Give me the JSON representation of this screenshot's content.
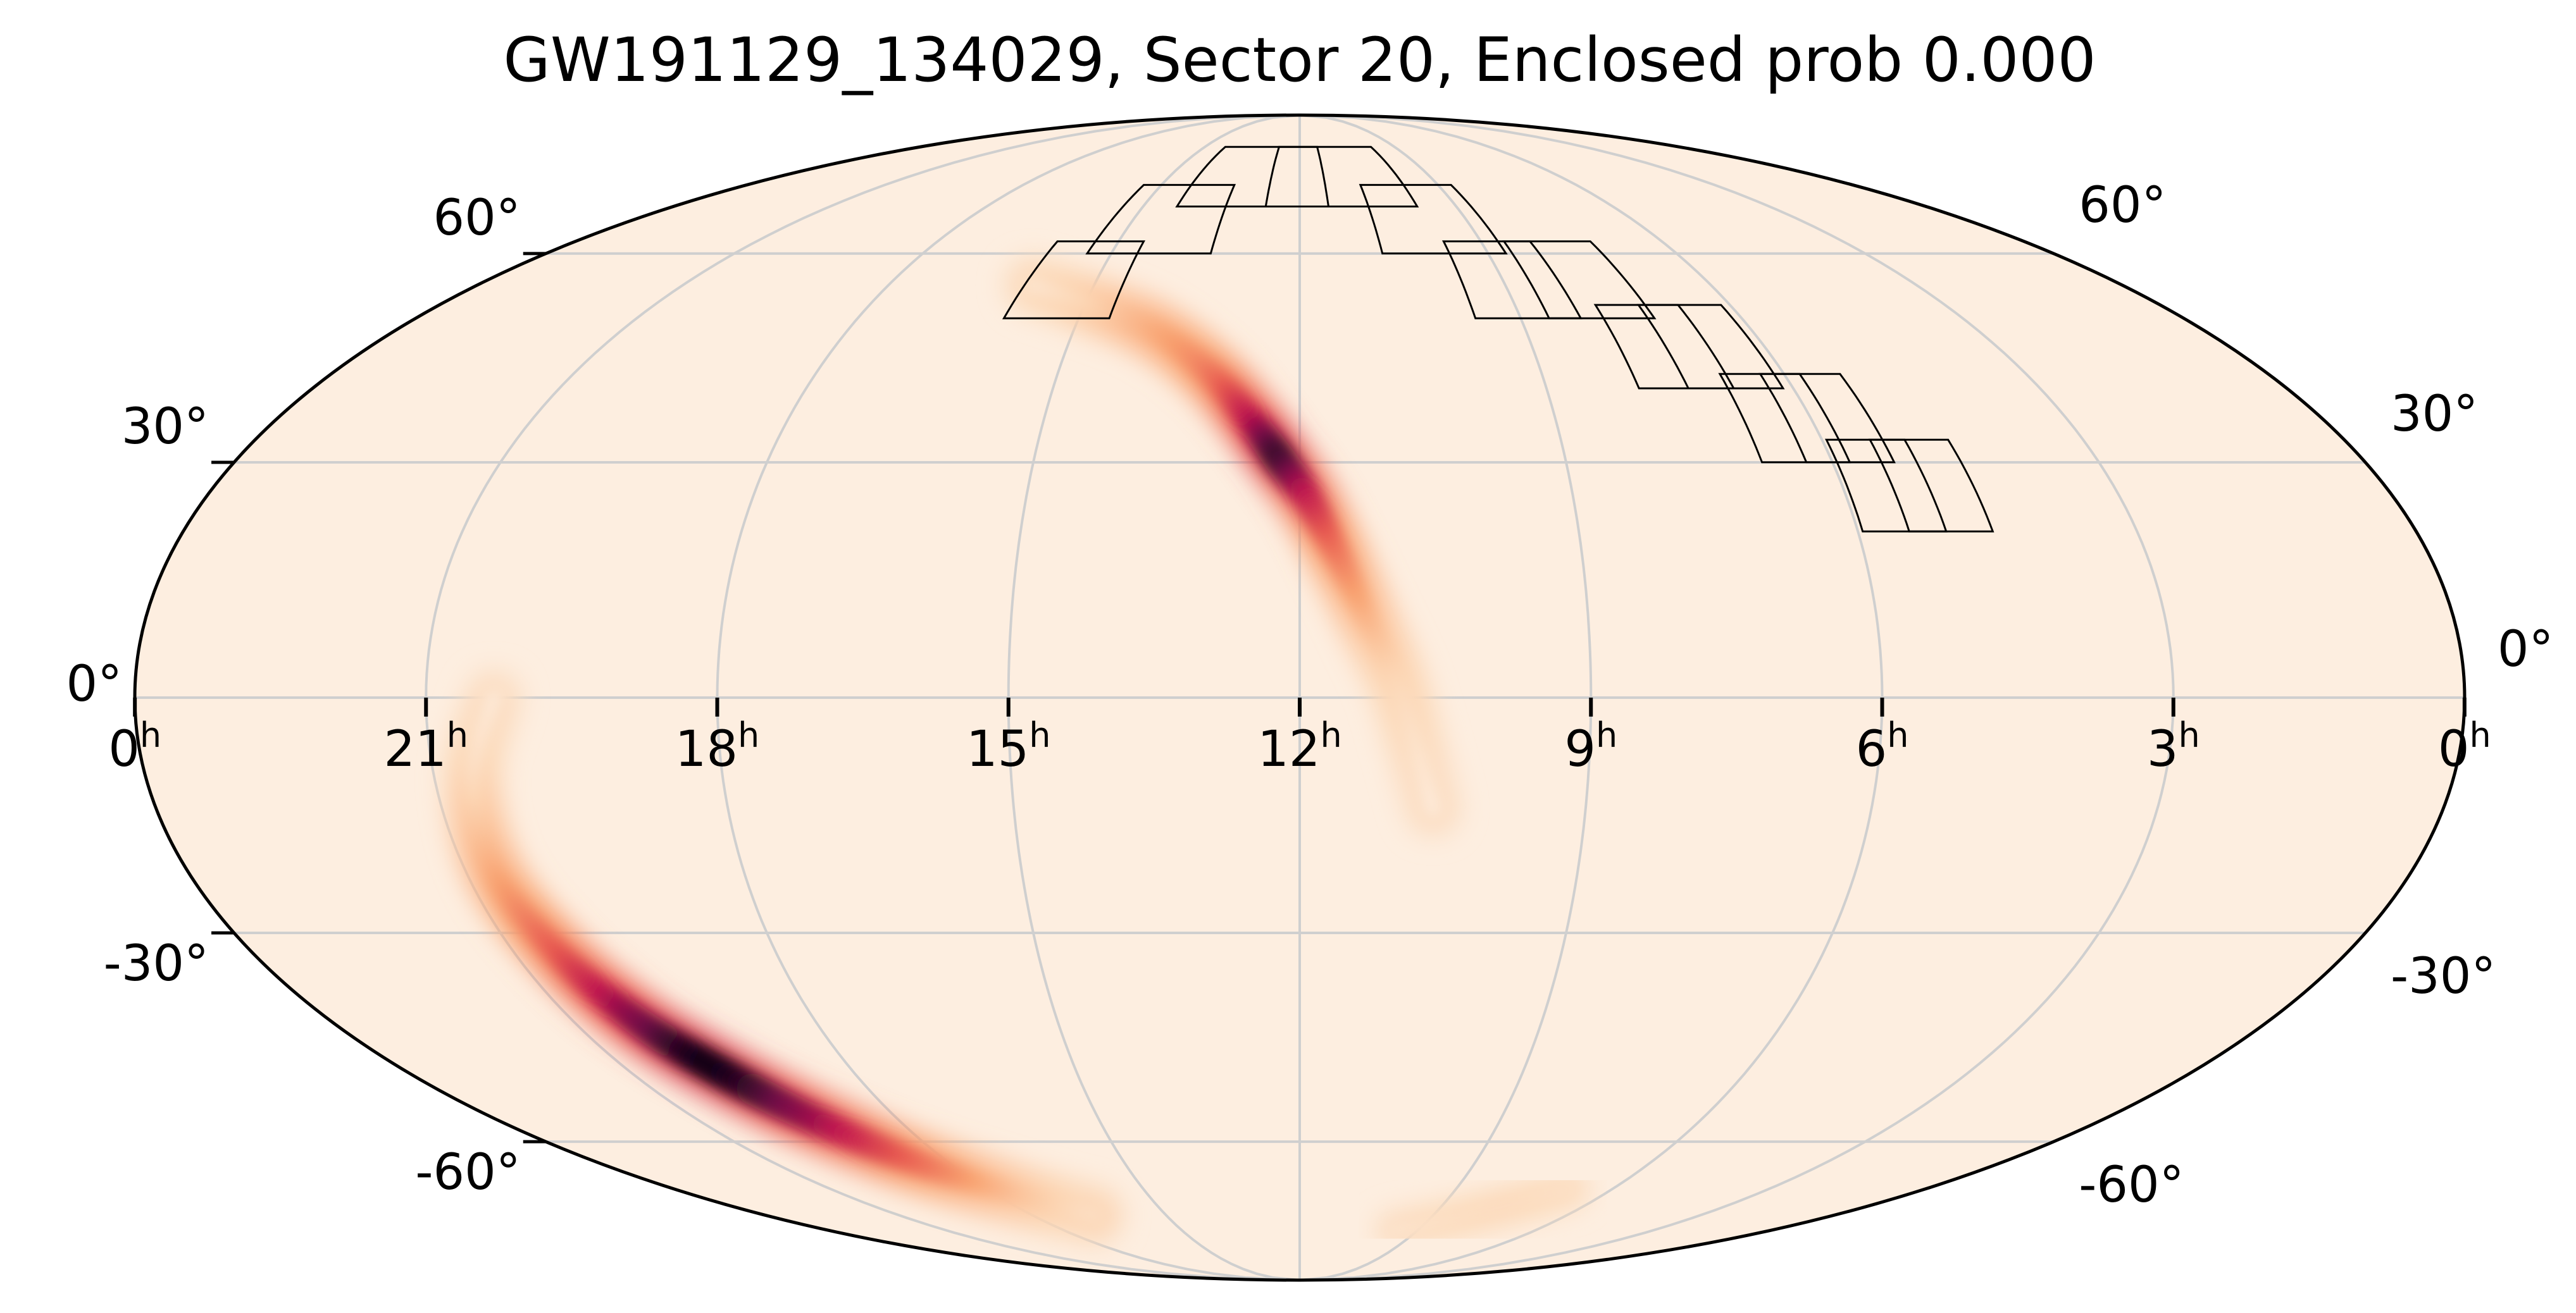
{
  "chart_data": {
    "type": "heatmap",
    "projection": "mollweide",
    "title": "GW191129_134029, Sector 20, Enclosed prob 0.000",
    "ra_ticks": [
      {
        "ra_h": 24,
        "label": "0",
        "unit": "h"
      },
      {
        "ra_h": 21,
        "label": "21",
        "unit": "h"
      },
      {
        "ra_h": 18,
        "label": "18",
        "unit": "h"
      },
      {
        "ra_h": 15,
        "label": "15",
        "unit": "h"
      },
      {
        "ra_h": 12,
        "label": "12",
        "unit": "h"
      },
      {
        "ra_h": 9,
        "label": "9",
        "unit": "h"
      },
      {
        "ra_h": 6,
        "label": "6",
        "unit": "h"
      },
      {
        "ra_h": 3,
        "label": "3",
        "unit": "h"
      },
      {
        "ra_h": 0,
        "label": "0",
        "unit": "h"
      }
    ],
    "dec_ticks": [
      {
        "dec": 60,
        "label": "60°"
      },
      {
        "dec": 30,
        "label": "30°"
      },
      {
        "dec": 0,
        "label": "0°"
      },
      {
        "dec": -30,
        "label": "-30°"
      },
      {
        "dec": -60,
        "label": "-60°"
      }
    ],
    "grid": true,
    "colormap": "sequential-cream-to-black",
    "colors": {
      "background": "#fdeee0",
      "grid": "#cfcfcf",
      "outline": "#000000",
      "footprint": "#000000"
    },
    "probability_arc_1": [
      {
        "ra_h": 15.9,
        "dec": 55,
        "density": 0.05
      },
      {
        "ra_h": 14.9,
        "dec": 52,
        "density": 0.15
      },
      {
        "ra_h": 13.9,
        "dec": 48,
        "density": 0.3
      },
      {
        "ra_h": 13.1,
        "dec": 42,
        "density": 0.45
      },
      {
        "ra_h": 12.6,
        "dec": 36,
        "density": 0.7
      },
      {
        "ra_h": 12.2,
        "dec": 30,
        "density": 0.95
      },
      {
        "ra_h": 11.9,
        "dec": 25,
        "density": 0.75
      },
      {
        "ra_h": 11.6,
        "dec": 18,
        "density": 0.5
      },
      {
        "ra_h": 11.3,
        "dec": 10,
        "density": 0.3
      },
      {
        "ra_h": 11.0,
        "dec": 2,
        "density": 0.15
      },
      {
        "ra_h": 10.8,
        "dec": -6,
        "density": 0.08
      },
      {
        "ra_h": 10.6,
        "dec": -14,
        "density": 0.03
      }
    ],
    "probability_arc_2": [
      {
        "ra_h": 20.3,
        "dec": 0,
        "density": 0.03
      },
      {
        "ra_h": 20.6,
        "dec": -10,
        "density": 0.1
      },
      {
        "ra_h": 20.7,
        "dec": -22,
        "density": 0.3
      },
      {
        "ra_h": 20.5,
        "dec": -33,
        "density": 0.55
      },
      {
        "ra_h": 20.2,
        "dec": -42,
        "density": 0.85
      },
      {
        "ra_h": 19.8,
        "dec": -49,
        "density": 1.0
      },
      {
        "ra_h": 19.3,
        "dec": -56,
        "density": 0.85
      },
      {
        "ra_h": 18.6,
        "dec": -63,
        "density": 0.55
      },
      {
        "ra_h": 17.6,
        "dec": -69,
        "density": 0.25
      },
      {
        "ra_h": 16.6,
        "dec": -73,
        "density": 0.1
      }
    ],
    "probability_arc_3": [
      {
        "ra_h": 9.6,
        "dec": -76,
        "density": 0.05
      },
      {
        "ra_h": 8.6,
        "dec": -74,
        "density": 0.08
      },
      {
        "ra_h": 7.6,
        "dec": -71,
        "density": 0.1
      },
      {
        "ra_h": 6.8,
        "dec": -68,
        "density": 0.08
      }
    ],
    "footprints": [
      {
        "ra_h": 15.3,
        "dec": 56
      },
      {
        "ra_h": 14.4,
        "dec": 66
      },
      {
        "ra_h": 12.9,
        "dec": 74
      },
      {
        "ra_h": 11.2,
        "dec": 74
      },
      {
        "ra_h": 9.7,
        "dec": 66
      },
      {
        "ra_h": 8.9,
        "dec": 56
      },
      {
        "ra_h": 7.9,
        "dec": 56
      },
      {
        "ra_h": 7.3,
        "dec": 46
      },
      {
        "ra_h": 6.7,
        "dec": 46
      },
      {
        "ra_h": 6.3,
        "dec": 36
      },
      {
        "ra_h": 5.8,
        "dec": 36
      },
      {
        "ra_h": 5.5,
        "dec": 27
      },
      {
        "ra_h": 5.0,
        "dec": 27
      }
    ]
  }
}
